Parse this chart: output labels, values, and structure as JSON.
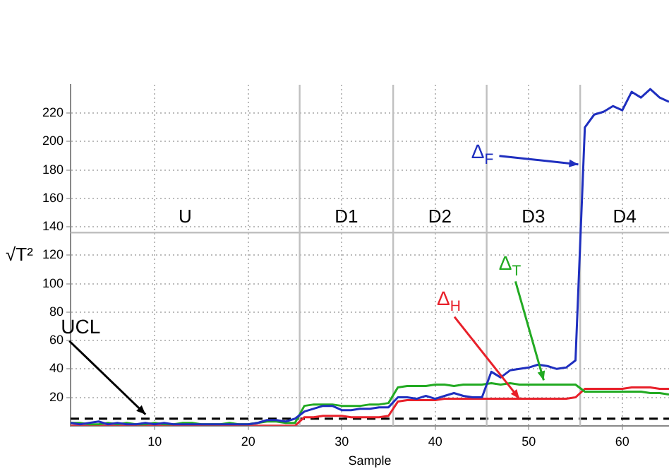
{
  "chart_data": {
    "type": "line",
    "xlabel": "Sample",
    "ylabel": "√T²",
    "x": [
      1,
      2,
      3,
      4,
      5,
      6,
      7,
      8,
      9,
      10,
      11,
      12,
      13,
      14,
      15,
      16,
      17,
      18,
      19,
      20,
      21,
      22,
      23,
      24,
      25,
      26,
      27,
      28,
      29,
      30,
      31,
      32,
      33,
      34,
      35,
      36,
      37,
      38,
      39,
      40,
      41,
      42,
      43,
      44,
      45,
      46,
      47,
      48,
      49,
      50,
      51,
      52,
      53,
      54,
      55,
      56,
      57,
      58,
      59,
      60,
      61,
      62,
      63,
      64,
      65
    ],
    "series": [
      {
        "color": "#1f2fbf",
        "values": [
          2,
          1,
          2,
          3,
          1,
          2,
          1,
          1,
          2,
          1,
          2,
          1,
          1,
          1,
          1,
          1,
          1,
          1,
          1,
          1,
          2,
          4,
          4,
          3,
          5,
          10,
          12,
          14,
          14,
          11,
          11,
          12,
          12,
          13,
          13,
          20,
          20,
          19,
          21,
          19,
          21,
          23,
          21,
          20,
          20,
          38,
          34,
          39,
          40,
          41,
          43,
          42,
          40,
          41,
          46,
          210,
          219,
          221,
          225,
          222,
          235,
          231,
          237,
          231,
          228
        ]
      },
      {
        "color": "#22aa22",
        "values": [
          2,
          2,
          1,
          1,
          2,
          1,
          2,
          1,
          1,
          2,
          1,
          1,
          2,
          2,
          1,
          1,
          1,
          2,
          1,
          1,
          2,
          3,
          3,
          2,
          2,
          14,
          15,
          15,
          15,
          14,
          14,
          14,
          15,
          15,
          16,
          27,
          28,
          28,
          28,
          29,
          29,
          28,
          29,
          29,
          29,
          30,
          29,
          30,
          29,
          29,
          29,
          29,
          29,
          29,
          29,
          24,
          24,
          24,
          24,
          24,
          24,
          24,
          23,
          23,
          22
        ]
      },
      {
        "color": "#e8202a",
        "values": [
          0,
          0,
          0,
          0,
          0,
          0,
          0,
          0,
          0,
          0,
          0,
          0,
          0,
          0,
          0,
          0,
          0,
          0,
          0,
          0,
          0,
          0,
          0,
          0,
          0,
          6,
          6,
          7,
          7,
          7,
          6,
          6,
          6,
          6,
          7,
          17,
          18,
          18,
          18,
          18,
          19,
          19,
          19,
          19,
          19,
          19,
          19,
          19,
          19,
          19,
          19,
          19,
          19,
          19,
          20,
          26,
          26,
          26,
          26,
          26,
          27,
          27,
          27,
          26,
          26
        ]
      }
    ],
    "xlim": [
      1,
      65
    ],
    "xticks": [
      10,
      20,
      30,
      40,
      50,
      60
    ],
    "ylim": [
      0,
      240
    ],
    "yticks": [
      20,
      40,
      60,
      80,
      100,
      120,
      140,
      160,
      180,
      200,
      220
    ],
    "grid": true,
    "marker": "none",
    "line_style": "solid",
    "ref_lines": [
      {
        "axis": "y",
        "value": 5,
        "label": "UCL",
        "color": "#000000",
        "line_style": "dashed"
      },
      {
        "axis": "x",
        "value": 25.5,
        "color": "#c0c0c0"
      },
      {
        "axis": "x",
        "value": 35.5,
        "color": "#c0c0c0"
      },
      {
        "axis": "x",
        "value": 45.5,
        "color": "#c0c0c0"
      },
      {
        "axis": "x",
        "value": 55.5,
        "color": "#c0c0c0"
      },
      {
        "axis": "y",
        "value": 136,
        "color": "#c0c0c0"
      }
    ],
    "annotations": [
      "U",
      "D1",
      "D2",
      "D3",
      "D4",
      {
        "text": "Δ$_{F}$",
        "x": 55.3,
        "y": 184
      },
      {
        "text": "Δ$_{H}$",
        "x": 49,
        "y": 19
      },
      {
        "text": "Δ$_{T}$",
        "x": 51.6,
        "y": 32
      }
    ]
  }
}
